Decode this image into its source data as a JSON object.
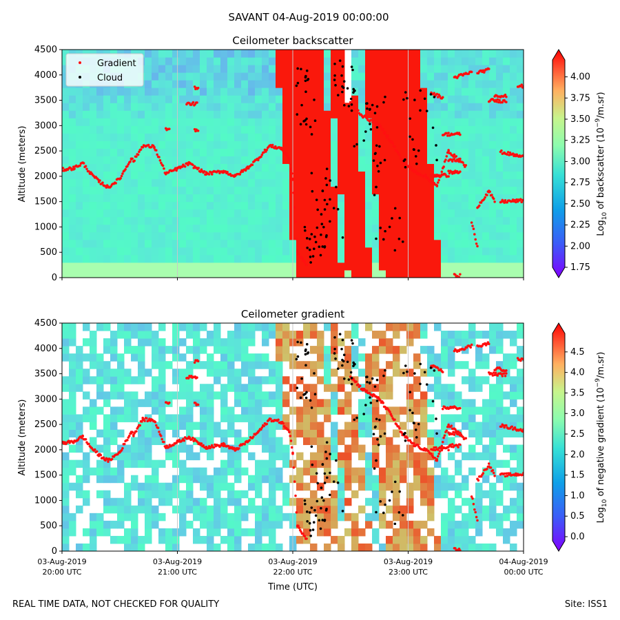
{
  "figure": {
    "suptitle": "SAVANT 04-Aug-2019 00:00:00",
    "footer_left": "REAL TIME DATA, NOT CHECKED FOR QUALITY",
    "footer_right": "Site: ISS1"
  },
  "colors": {
    "gradient_marker": "#ff1010",
    "cloud_marker": "#000000",
    "grid": "#c8c8c8",
    "colormap": "rainbow"
  },
  "chart_data": [
    {
      "type": "heatmap",
      "id": "backscatter",
      "title": "Ceilometer backscatter",
      "xlabel": "",
      "ylabel": "Altitude (meters)",
      "ylim": [
        0,
        4500
      ],
      "yticks": [
        0,
        500,
        1000,
        1500,
        2000,
        2500,
        3000,
        3500,
        4000,
        4500
      ],
      "xlim_hours": [
        20,
        24
      ],
      "xticks_hours": [
        20,
        21,
        22,
        23,
        24
      ],
      "xticklabels": [],
      "legend": {
        "position": "top-left",
        "entries": [
          "Gradient",
          "Cloud"
        ]
      },
      "colorbar": {
        "label_prefix": "Log",
        "label_sub": "10",
        "label_mid": " of backscatter (10",
        "label_sup": "−9",
        "label_end": "/m.sr)",
        "range": [
          1.75,
          4.2
        ],
        "ticks": [
          "1.75",
          "2.00",
          "2.25",
          "2.50",
          "2.75",
          "3.00",
          "3.25",
          "3.50",
          "3.75",
          "4.00"
        ],
        "extend": "both"
      }
    },
    {
      "type": "heatmap",
      "id": "gradient",
      "title": "Ceilometer gradient",
      "xlabel": "Time (UTC)",
      "ylabel": "Altitude (meters)",
      "ylim": [
        0,
        4500
      ],
      "yticks": [
        0,
        500,
        1000,
        1500,
        2000,
        2500,
        3000,
        3500,
        4000,
        4500
      ],
      "xlim_hours": [
        20,
        24
      ],
      "xticks_hours": [
        20,
        21,
        22,
        23,
        24
      ],
      "xticklabels": [
        [
          "03-Aug-2019",
          "20:00 UTC"
        ],
        [
          "03-Aug-2019",
          "21:00 UTC"
        ],
        [
          "03-Aug-2019",
          "22:00 UTC"
        ],
        [
          "03-Aug-2019",
          "23:00 UTC"
        ],
        [
          "04-Aug-2019",
          "00:00 UTC"
        ]
      ],
      "colorbar": {
        "label_prefix": "Log",
        "label_sub": "10",
        "label_mid": " of negative gradient (10",
        "label_sup": "−9",
        "label_end": "/m.sr)",
        "range": [
          -0.1,
          4.95
        ],
        "ticks": [
          "0.0",
          "0.5",
          "1.0",
          "1.5",
          "2.0",
          "2.5",
          "3.0",
          "3.5",
          "4.0",
          "4.5"
        ],
        "extend": "both"
      }
    }
  ],
  "series": {
    "gradient_layer": {
      "name": "Gradient",
      "segments": [
        {
          "x": [
            20.0,
            20.1,
            20.18,
            20.25,
            20.32,
            20.4,
            20.5,
            20.6,
            20.62
          ],
          "y": [
            2130,
            2160,
            2260,
            2050,
            1900,
            1780,
            1950,
            2350,
            2300
          ]
        },
        {
          "x": [
            20.62,
            20.7,
            20.8,
            20.9,
            21.0,
            21.1,
            21.25,
            21.4,
            21.5,
            21.6,
            21.7,
            21.8,
            21.9,
            21.97
          ],
          "y": [
            2300,
            2600,
            2580,
            2050,
            2150,
            2250,
            2050,
            2100,
            2000,
            2150,
            2350,
            2600,
            2550,
            2350
          ]
        },
        {
          "x": [
            21.97,
            22.0,
            22.04,
            22.12
          ],
          "y": [
            2350,
            1950,
            500,
            250
          ]
        },
        {
          "x": [
            22.5,
            22.6,
            22.75,
            22.85,
            22.95,
            23.05,
            23.15,
            23.25,
            23.35,
            23.5
          ],
          "y": [
            3450,
            3200,
            3000,
            2700,
            2300,
            2100,
            2000,
            1800,
            2500,
            2200
          ]
        },
        {
          "x": [
            21.08,
            21.17
          ],
          "y": [
            3430,
            3430
          ]
        },
        {
          "x": [
            20.9,
            20.93
          ],
          "y": [
            2920,
            2920
          ]
        },
        {
          "x": [
            21.15,
            21.18
          ],
          "y": [
            2900,
            2900
          ]
        },
        {
          "x": [
            21.15,
            21.18
          ],
          "y": [
            3750,
            3750
          ]
        },
        {
          "x": [
            23.2,
            23.3
          ],
          "y": [
            3650,
            3550
          ]
        },
        {
          "x": [
            23.3,
            23.45
          ],
          "y": [
            2830,
            2830
          ]
        },
        {
          "x": [
            23.35,
            23.45
          ],
          "y": [
            2320,
            2320
          ]
        },
        {
          "x": [
            23.2,
            23.35
          ],
          "y": [
            2020,
            2020
          ]
        },
        {
          "x": [
            23.35,
            23.45
          ],
          "y": [
            2080,
            2080
          ]
        },
        {
          "x": [
            23.4,
            23.55
          ],
          "y": [
            3950,
            4050
          ]
        },
        {
          "x": [
            23.6,
            23.7
          ],
          "y": [
            4050,
            4100
          ]
        },
        {
          "x": [
            23.7,
            23.85
          ],
          "y": [
            3500,
            3480
          ]
        },
        {
          "x": [
            23.75,
            23.85
          ],
          "y": [
            3600,
            3580
          ]
        },
        {
          "x": [
            23.8,
            24.0
          ],
          "y": [
            2480,
            2380
          ]
        },
        {
          "x": [
            23.6,
            23.7,
            23.75
          ],
          "y": [
            1400,
            1700,
            1500
          ]
        },
        {
          "x": [
            23.8,
            24.0
          ],
          "y": [
            1500,
            1520
          ]
        },
        {
          "x": [
            23.95,
            24.0
          ],
          "y": [
            3780,
            3780
          ]
        },
        {
          "x": [
            23.55,
            23.6
          ],
          "y": [
            1100,
            600
          ]
        },
        {
          "x": [
            23.4,
            23.45
          ],
          "y": [
            40,
            40
          ]
        }
      ]
    },
    "cloud_base": {
      "name": "Cloud",
      "color": "#000000",
      "clusters": [
        {
          "x": [
            22.02,
            22.2
          ],
          "y": [
            2800,
            4300
          ]
        },
        {
          "x": [
            22.15,
            22.45
          ],
          "y": [
            700,
            2200
          ]
        },
        {
          "x": [
            22.35,
            22.55
          ],
          "y": [
            3300,
            4300
          ]
        },
        {
          "x": [
            22.5,
            22.8
          ],
          "y": [
            2400,
            3600
          ]
        },
        {
          "x": [
            22.7,
            23.0
          ],
          "y": [
            500,
            2500
          ]
        },
        {
          "x": [
            22.95,
            23.25
          ],
          "y": [
            2000,
            3700
          ]
        },
        {
          "x": [
            22.1,
            22.3
          ],
          "y": [
            300,
            1000
          ]
        }
      ]
    }
  }
}
